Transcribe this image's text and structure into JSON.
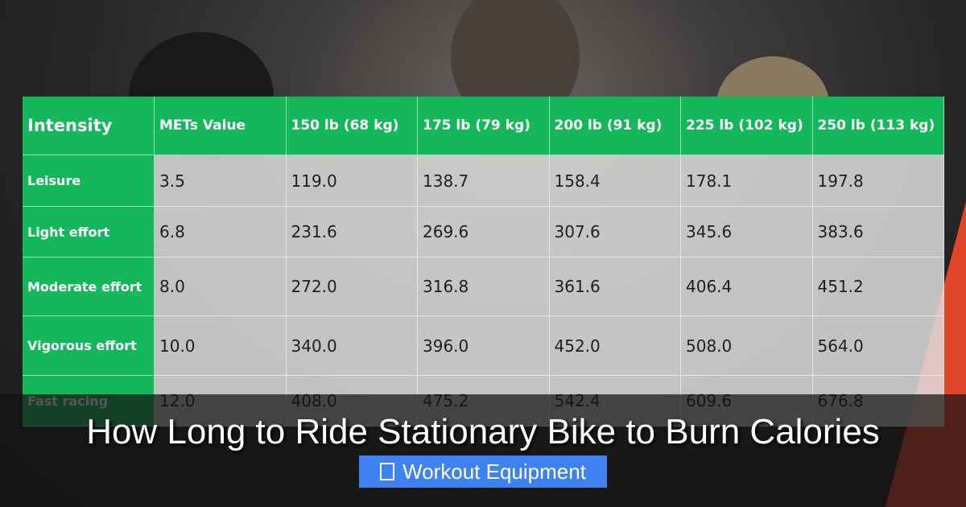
{
  "table": {
    "header": [
      "Intensity",
      "METs Value",
      "150 lb (68 kg)",
      "175 lb (79 kg)",
      "200 lb (91 kg)",
      "225 lb (102 kg)",
      "250 lb (113 kg)"
    ],
    "rows": [
      [
        "Leisure",
        "3.5",
        "119.0",
        "138.7",
        "158.4",
        "178.1",
        "197.8"
      ],
      [
        "Light effort",
        "6.8",
        "231.6",
        "269.6",
        "307.6",
        "345.6",
        "383.6"
      ],
      [
        "Moderate effort",
        "8.0",
        "272.0",
        "316.8",
        "361.6",
        "406.4",
        "451.2"
      ],
      [
        "Vigorous effort",
        "10.0",
        "340.0",
        "396.0",
        "452.0",
        "508.0",
        "564.0"
      ],
      [
        "Fast racing",
        "12.0",
        "408.0",
        "475.2",
        "542.4",
        "609.6",
        "676.8"
      ]
    ]
  },
  "title": "How Long to Ride Stationary Bike to Burn Calories",
  "category": "Workout Equipment"
}
